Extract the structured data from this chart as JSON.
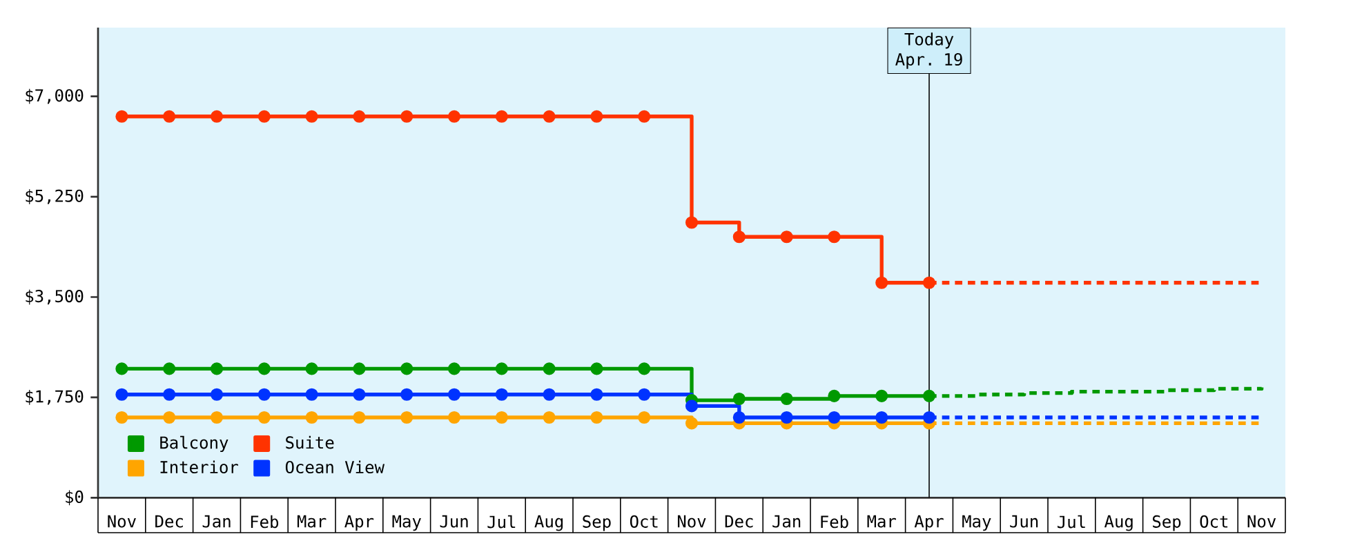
{
  "chart_data": {
    "type": "step",
    "categories": [
      "Nov",
      "Dec",
      "Jan",
      "Feb",
      "Mar",
      "Apr",
      "May",
      "Jun",
      "Jul",
      "Aug",
      "Sep",
      "Oct",
      "Nov",
      "Dec",
      "Jan",
      "Feb",
      "Mar",
      "Apr",
      "May",
      "Jun",
      "Jul",
      "Aug",
      "Sep",
      "Oct",
      "Nov"
    ],
    "ylim": [
      0,
      8200
    ],
    "yticks": [
      {
        "value": 0,
        "label": "$0"
      },
      {
        "value": 1750,
        "label": "$1,750"
      },
      {
        "value": 3500,
        "label": "$3,500"
      },
      {
        "value": 5250,
        "label": "$5,250"
      },
      {
        "value": 7000,
        "label": "$7,000"
      }
    ],
    "legend": "bottom left",
    "annotations": [
      "Today Apr. 19"
    ],
    "series": [
      {
        "name": "Balcony",
        "color": "#009900",
        "marker": "circle",
        "values": [
          2250,
          2250,
          2250,
          2250,
          2250,
          2250,
          2250,
          2250,
          2250,
          2250,
          2250,
          2250,
          1700,
          1725,
          1725,
          1775,
          1775,
          1775,
          null,
          null,
          null,
          null,
          null,
          null,
          null
        ]
      },
      {
        "name": "Suite",
        "color": "#ff3300",
        "marker": "circle",
        "values": [
          6650,
          6650,
          6650,
          6650,
          6650,
          6650,
          6650,
          6650,
          6650,
          6650,
          6650,
          6650,
          4800,
          4550,
          4550,
          4550,
          3750,
          3750,
          null,
          null,
          null,
          null,
          null,
          null,
          null
        ]
      },
      {
        "name": "Interior",
        "color": "#ffa500",
        "marker": "circle",
        "values": [
          1400,
          1400,
          1400,
          1400,
          1400,
          1400,
          1400,
          1400,
          1400,
          1400,
          1400,
          1400,
          1300,
          1300,
          1300,
          1300,
          1300,
          1300,
          null,
          null,
          null,
          null,
          null,
          null,
          null
        ]
      },
      {
        "name": "Ocean View",
        "color": "#0033ff",
        "marker": "circle",
        "values": [
          1800,
          1800,
          1800,
          1800,
          1800,
          1800,
          1800,
          1800,
          1800,
          1800,
          1800,
          1800,
          1600,
          1400,
          1400,
          1400,
          1400,
          1400,
          null,
          null,
          null,
          null,
          null,
          null,
          null
        ]
      },
      {
        "color": "#009900",
        "line_style": "dashed",
        "marker": "none",
        "values": [
          null,
          null,
          null,
          null,
          null,
          null,
          null,
          null,
          null,
          null,
          null,
          null,
          null,
          null,
          null,
          null,
          null,
          1775,
          1800,
          1825,
          1850,
          1850,
          1875,
          1900,
          1925
        ]
      },
      {
        "color": "#ff3300",
        "line_style": "dashed",
        "marker": "none",
        "values": [
          null,
          null,
          null,
          null,
          null,
          null,
          null,
          null,
          null,
          null,
          null,
          null,
          null,
          null,
          null,
          null,
          null,
          3750,
          3750,
          3750,
          3750,
          3750,
          3750,
          3750,
          3750
        ]
      },
      {
        "color": "#ffa500",
        "line_style": "dashed",
        "marker": "none",
        "values": [
          null,
          null,
          null,
          null,
          null,
          null,
          null,
          null,
          null,
          null,
          null,
          null,
          null,
          null,
          null,
          null,
          null,
          1300,
          1300,
          1300,
          1300,
          1300,
          1300,
          1300,
          1300
        ]
      },
      {
        "color": "#0033ff",
        "line_style": "dashed",
        "marker": "none",
        "values": [
          null,
          null,
          null,
          null,
          null,
          null,
          null,
          null,
          null,
          null,
          null,
          null,
          null,
          null,
          null,
          null,
          null,
          1400,
          1400,
          1400,
          1400,
          1400,
          1400,
          1400,
          1400
        ]
      }
    ]
  }
}
